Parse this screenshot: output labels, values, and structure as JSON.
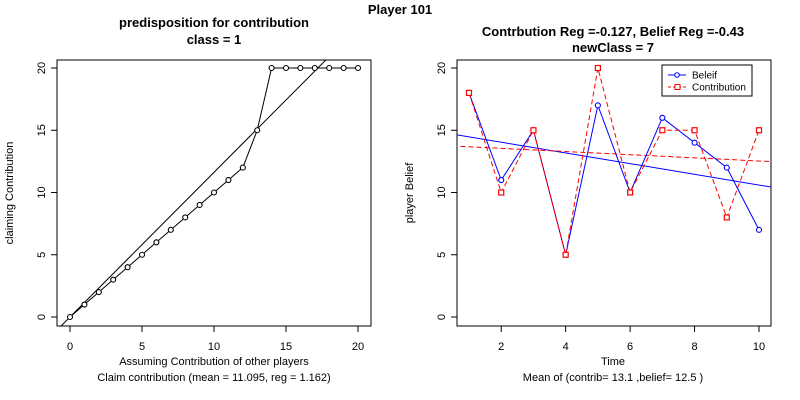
{
  "page_title": "Player 101",
  "chart_data": [
    {
      "type": "line",
      "title": "predisposition for contribution",
      "subtitle": "class = 1",
      "xlabel": "Assuming Contribution of other players",
      "ylabel": "claiming Contribution",
      "footer": "Claim contribution (mean = 11.095, reg = 1.162)",
      "xlim": [
        0,
        20
      ],
      "ylim": [
        0,
        20
      ],
      "xticks": [
        0,
        5,
        10,
        15,
        20
      ],
      "yticks": [
        0,
        5,
        10,
        15,
        20
      ],
      "x": [
        0,
        1,
        2,
        3,
        4,
        5,
        6,
        7,
        8,
        9,
        10,
        11,
        12,
        13,
        14,
        15,
        16,
        17,
        18,
        19,
        20
      ],
      "series": [
        {
          "values": [
            0,
            1,
            2,
            3,
            4,
            5,
            6,
            7,
            8,
            9,
            10,
            11,
            12,
            15,
            20,
            20,
            20,
            20,
            20,
            20,
            20
          ],
          "marker": "circle",
          "color": "#000000"
        }
      ],
      "regression_line": {
        "intercept": 0,
        "slope": 1.162,
        "color": "#000000"
      },
      "grid": false
    },
    {
      "type": "line",
      "title": "Contrbution Reg =-0.127, Belief Reg =-0.43",
      "subtitle": "newClass = 7",
      "xlabel": "Time",
      "ylabel": "player Belief",
      "footer": "Mean of (contrib= 13.1  ,belief= 12.5 )",
      "xlim": [
        1,
        10
      ],
      "ylim": [
        0,
        20
      ],
      "xticks": [
        2,
        4,
        6,
        8,
        10
      ],
      "yticks": [
        0,
        5,
        10,
        15,
        20
      ],
      "x": [
        1,
        2,
        3,
        4,
        5,
        6,
        7,
        8,
        9,
        10
      ],
      "series": [
        {
          "name": "Beleif",
          "values": [
            18,
            11,
            15,
            5,
            17,
            10,
            16,
            14,
            12,
            7
          ],
          "marker": "circle",
          "color": "#0000ff",
          "style": "solid"
        },
        {
          "name": "Contribution",
          "values": [
            18,
            10,
            15,
            5,
            20,
            10,
            15,
            15,
            8,
            15
          ],
          "marker": "square",
          "color": "#ff0000",
          "style": "dashed"
        }
      ],
      "regression_lines": [
        {
          "name": "Beleif",
          "intercept": 14.9,
          "slope": -0.43,
          "color": "#0000ff",
          "style": "solid"
        },
        {
          "name": "Contribution",
          "intercept": 13.8,
          "slope": -0.127,
          "color": "#ff0000",
          "style": "dashed"
        }
      ],
      "legend": "top-right",
      "grid": false
    }
  ]
}
